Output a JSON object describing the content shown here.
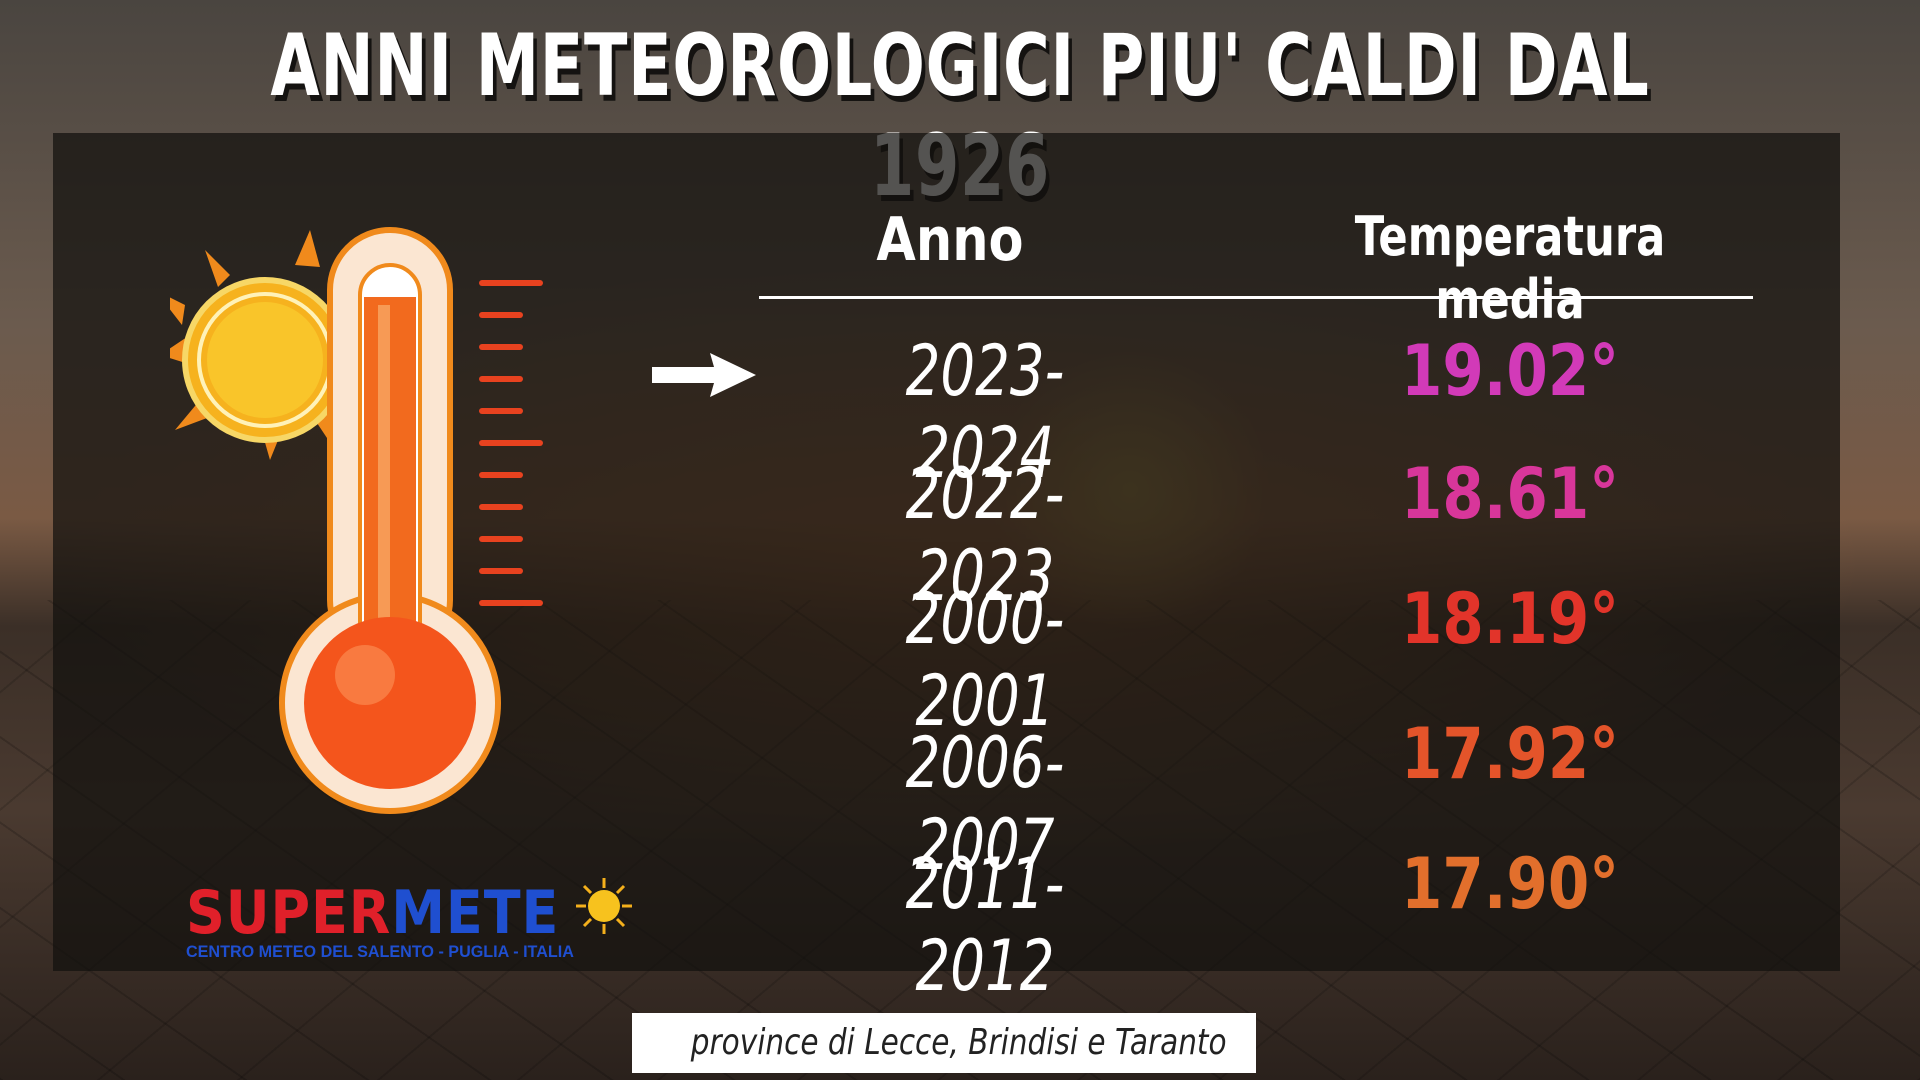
{
  "title": "ANNI METEOROLOGICI PIU' CALDI DAL 1926",
  "table": {
    "col_year": "Anno",
    "col_temp": "Temperatura media",
    "rows": [
      {
        "year": "2023-2024",
        "temp": "19.02°",
        "color": "#d23ab8"
      },
      {
        "year": "2022-2023",
        "temp": "18.61°",
        "color": "#d8369a"
      },
      {
        "year": "2000-2001",
        "temp": "18.19°",
        "color": "#e2342a"
      },
      {
        "year": "2006-2007",
        "temp": "17.92°",
        "color": "#e4542a"
      },
      {
        "year": "2011-2012",
        "temp": "17.90°",
        "color": "#e26f2c"
      }
    ]
  },
  "logo": {
    "word_red": "SUPER",
    "word_blue": "METE",
    "subtitle": "CENTRO METEO DEL SALENTO - PUGLIA - ITALIA"
  },
  "footer": "province di Lecce, Brindisi e Taranto",
  "icons": [
    "thermometer-sun-icon",
    "arrow-right-icon",
    "sun-icon"
  ]
}
